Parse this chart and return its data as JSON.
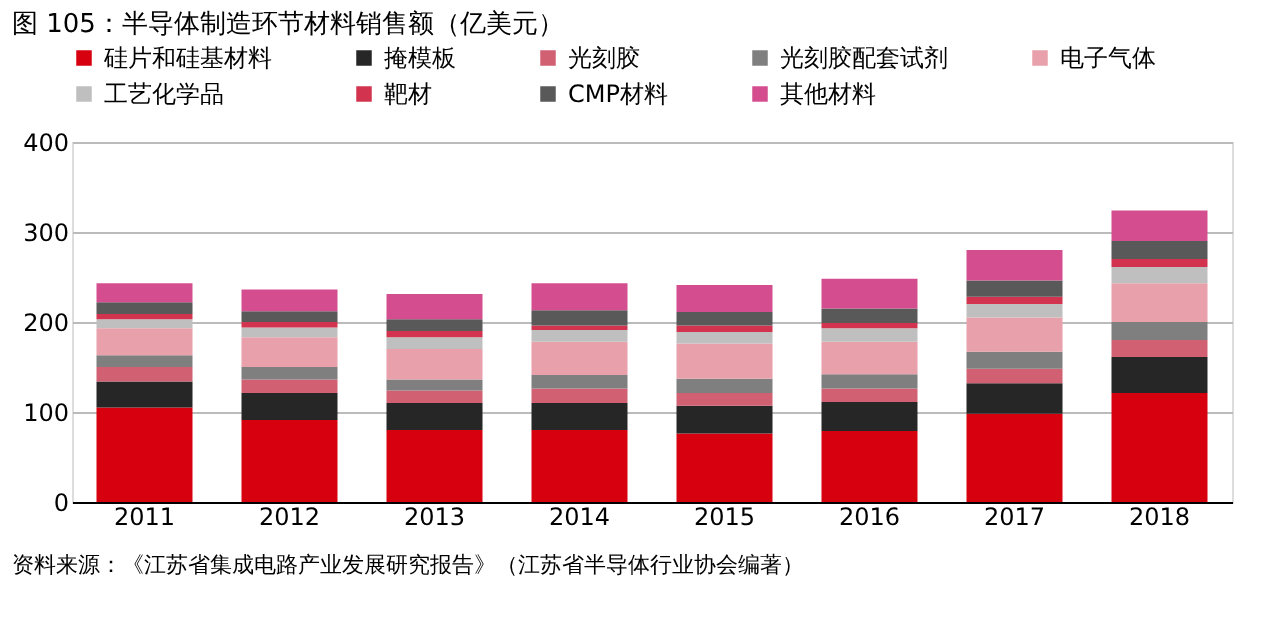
{
  "chart_data": {
    "type": "bar",
    "title": "图 105：半导体制造环节材料销售额（亿美元）",
    "stacked": true,
    "categories": [
      "2011",
      "2012",
      "2013",
      "2014",
      "2015",
      "2016",
      "2017",
      "2018"
    ],
    "series": [
      {
        "name": "硅片和硅基材料",
        "color": "#d7000f",
        "values": [
          105,
          91,
          80,
          80,
          76,
          79,
          98,
          121
        ]
      },
      {
        "name": "掩模板",
        "color": "#262626",
        "values": [
          29,
          30,
          30,
          30,
          31,
          32,
          34,
          40
        ]
      },
      {
        "name": "光刻胶",
        "color": "#d06072",
        "values": [
          16,
          15,
          14,
          16,
          14,
          15,
          16,
          19
        ]
      },
      {
        "name": "光刻胶配套试剂",
        "color": "#7f7f7f",
        "values": [
          13,
          14,
          12,
          15,
          16,
          16,
          19,
          20
        ]
      },
      {
        "name": "电子气体",
        "color": "#e8a0ab",
        "values": [
          30,
          33,
          34,
          37,
          39,
          36,
          38,
          43
        ]
      },
      {
        "name": "工艺化学品",
        "color": "#bfbfbf",
        "values": [
          10,
          11,
          13,
          13,
          13,
          15,
          15,
          18
        ]
      },
      {
        "name": "靶材",
        "color": "#d2344f",
        "values": [
          6,
          6,
          7,
          5,
          7,
          6,
          8,
          9
        ]
      },
      {
        "name": "CMP材料",
        "color": "#595959",
        "values": [
          13,
          12,
          13,
          17,
          15,
          16,
          18,
          20
        ]
      },
      {
        "name": "其他材料",
        "color": "#d44e8f",
        "values": [
          21,
          24,
          28,
          30,
          30,
          33,
          34,
          34
        ]
      }
    ],
    "ylim": [
      0,
      400
    ],
    "yticks": [
      0,
      100,
      200,
      300,
      400
    ],
    "grid": "y",
    "legend": "top",
    "annotations": [
      "资料来源：《江苏省集成电路产业发展研究报告》（江苏省半导体行业协会编著）"
    ]
  }
}
